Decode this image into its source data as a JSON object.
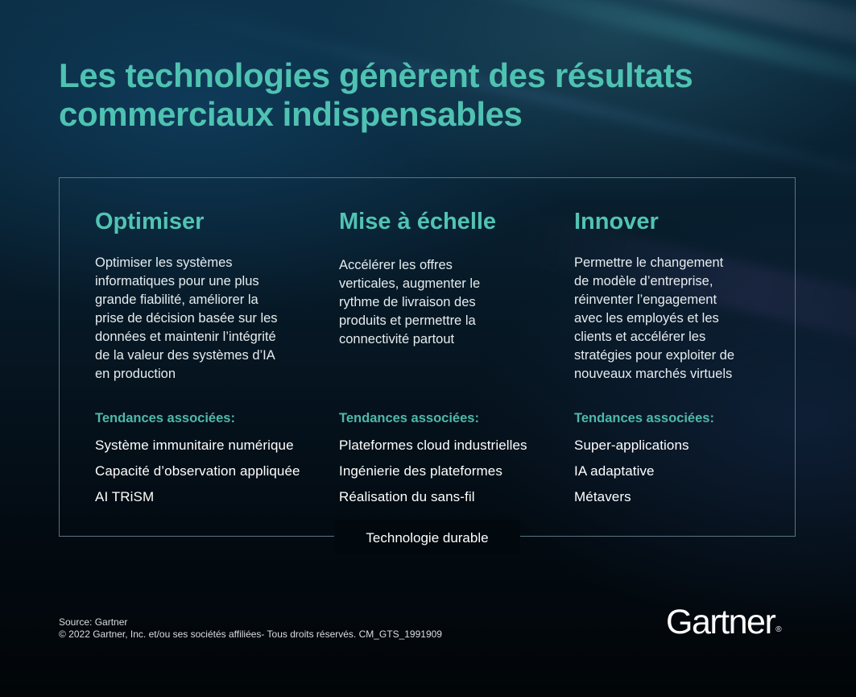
{
  "title": {
    "line1": "Les technologies génèrent des résultats",
    "line2": "commerciaux indispensables"
  },
  "columns": [
    {
      "heading": "Optimiser",
      "description": [
        "Optimiser les systèmes",
        "informatiques pour une plus",
        "grande fiabilité, améliorer la",
        "prise de décision basée sur les",
        "données et maintenir l’intégrité",
        "de la valeur des systèmes d’IA",
        "en production"
      ],
      "trends_label": "Tendances associées:",
      "trends": [
        "Système immunitaire numérique",
        "Capacité d’observation appliquée",
        "AI TRiSM"
      ]
    },
    {
      "heading": "Mise à échelle",
      "description": [
        "Accélérer les offres",
        "verticales, augmenter le",
        "rythme de livraison des",
        "produits et permettre la",
        "connectivité partout"
      ],
      "trends_label": "Tendances associées:",
      "trends": [
        "Plateformes cloud industrielles",
        "Ingénierie des plateformes",
        "Réalisation du sans-fil"
      ]
    },
    {
      "heading": "Innover",
      "description": [
        "Permettre le changement",
        "de modèle d’entreprise,",
        "réinventer l’engagement",
        "avec les employés et les",
        "clients et accélérer les",
        "stratégies pour exploiter de",
        "nouveaux marchés virtuels"
      ],
      "trends_label": "Tendances associées:",
      "trends": [
        "Super-applications",
        "IA adaptative",
        "Métavers"
      ]
    }
  ],
  "bottom_tag": "Technologie durable",
  "footer": {
    "source": "Source: Gartner",
    "copyright": "© 2022 Gartner, Inc. et/ou ses sociétés affiliées- Tous droits réservés. CM_GTS_1991909"
  },
  "logo": {
    "text": "Gartner",
    "mark": "®"
  },
  "colors": {
    "accent": "#52c3b3",
    "background": "#02080c",
    "text": "#ffffff"
  }
}
